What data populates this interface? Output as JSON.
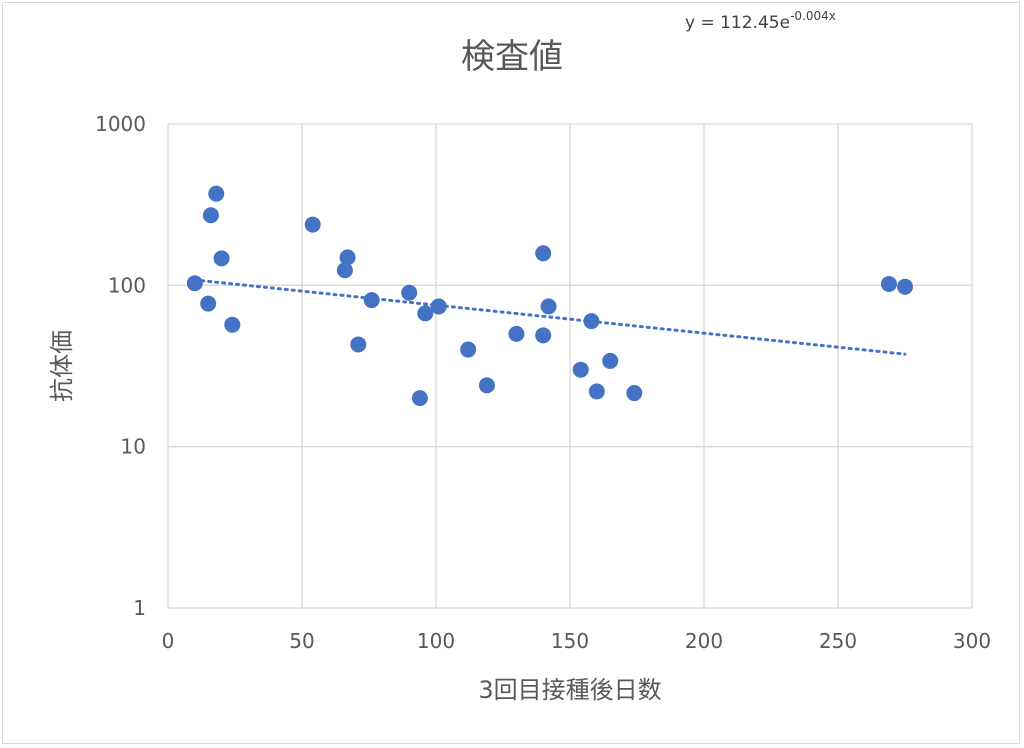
{
  "chart_data": {
    "type": "scatter",
    "title": "検査値",
    "xlabel": "3回目接種後日数",
    "ylabel": "抗体価",
    "x_scale": "linear",
    "y_scale": "log",
    "xlim": [
      0,
      300
    ],
    "ylim": [
      1,
      1000
    ],
    "x_ticks": [
      0,
      50,
      100,
      150,
      200,
      250,
      300
    ],
    "y_ticks": [
      1,
      10,
      100,
      1000
    ],
    "grid": true,
    "legend": "none",
    "colors": {
      "points": "#4472c4",
      "trendline": "#4472c4",
      "grid": "#d9d9d9",
      "text": "#595959"
    },
    "series": [
      {
        "points": [
          {
            "x": 10,
            "y": 103
          },
          {
            "x": 15,
            "y": 77
          },
          {
            "x": 16,
            "y": 272
          },
          {
            "x": 18,
            "y": 370
          },
          {
            "x": 20,
            "y": 147
          },
          {
            "x": 24,
            "y": 57
          },
          {
            "x": 54,
            "y": 238
          },
          {
            "x": 66,
            "y": 124
          },
          {
            "x": 67,
            "y": 149
          },
          {
            "x": 71,
            "y": 43
          },
          {
            "x": 76,
            "y": 81
          },
          {
            "x": 90,
            "y": 90
          },
          {
            "x": 94,
            "y": 20
          },
          {
            "x": 96,
            "y": 67
          },
          {
            "x": 101,
            "y": 74
          },
          {
            "x": 112,
            "y": 40
          },
          {
            "x": 119,
            "y": 24
          },
          {
            "x": 130,
            "y": 50
          },
          {
            "x": 140,
            "y": 158
          },
          {
            "x": 140,
            "y": 49
          },
          {
            "x": 142,
            "y": 74
          },
          {
            "x": 154,
            "y": 30
          },
          {
            "x": 158,
            "y": 60
          },
          {
            "x": 160,
            "y": 22
          },
          {
            "x": 165,
            "y": 34
          },
          {
            "x": 174,
            "y": 21.5
          },
          {
            "x": 269,
            "y": 102
          },
          {
            "x": 275,
            "y": 98
          }
        ]
      }
    ],
    "trendline": {
      "type": "exponential",
      "a": 112.45,
      "b": -0.004,
      "x_range": [
        10,
        275
      ],
      "equation_prefix": "y = 112.45e",
      "equation_exponent": "-0.004x"
    }
  }
}
